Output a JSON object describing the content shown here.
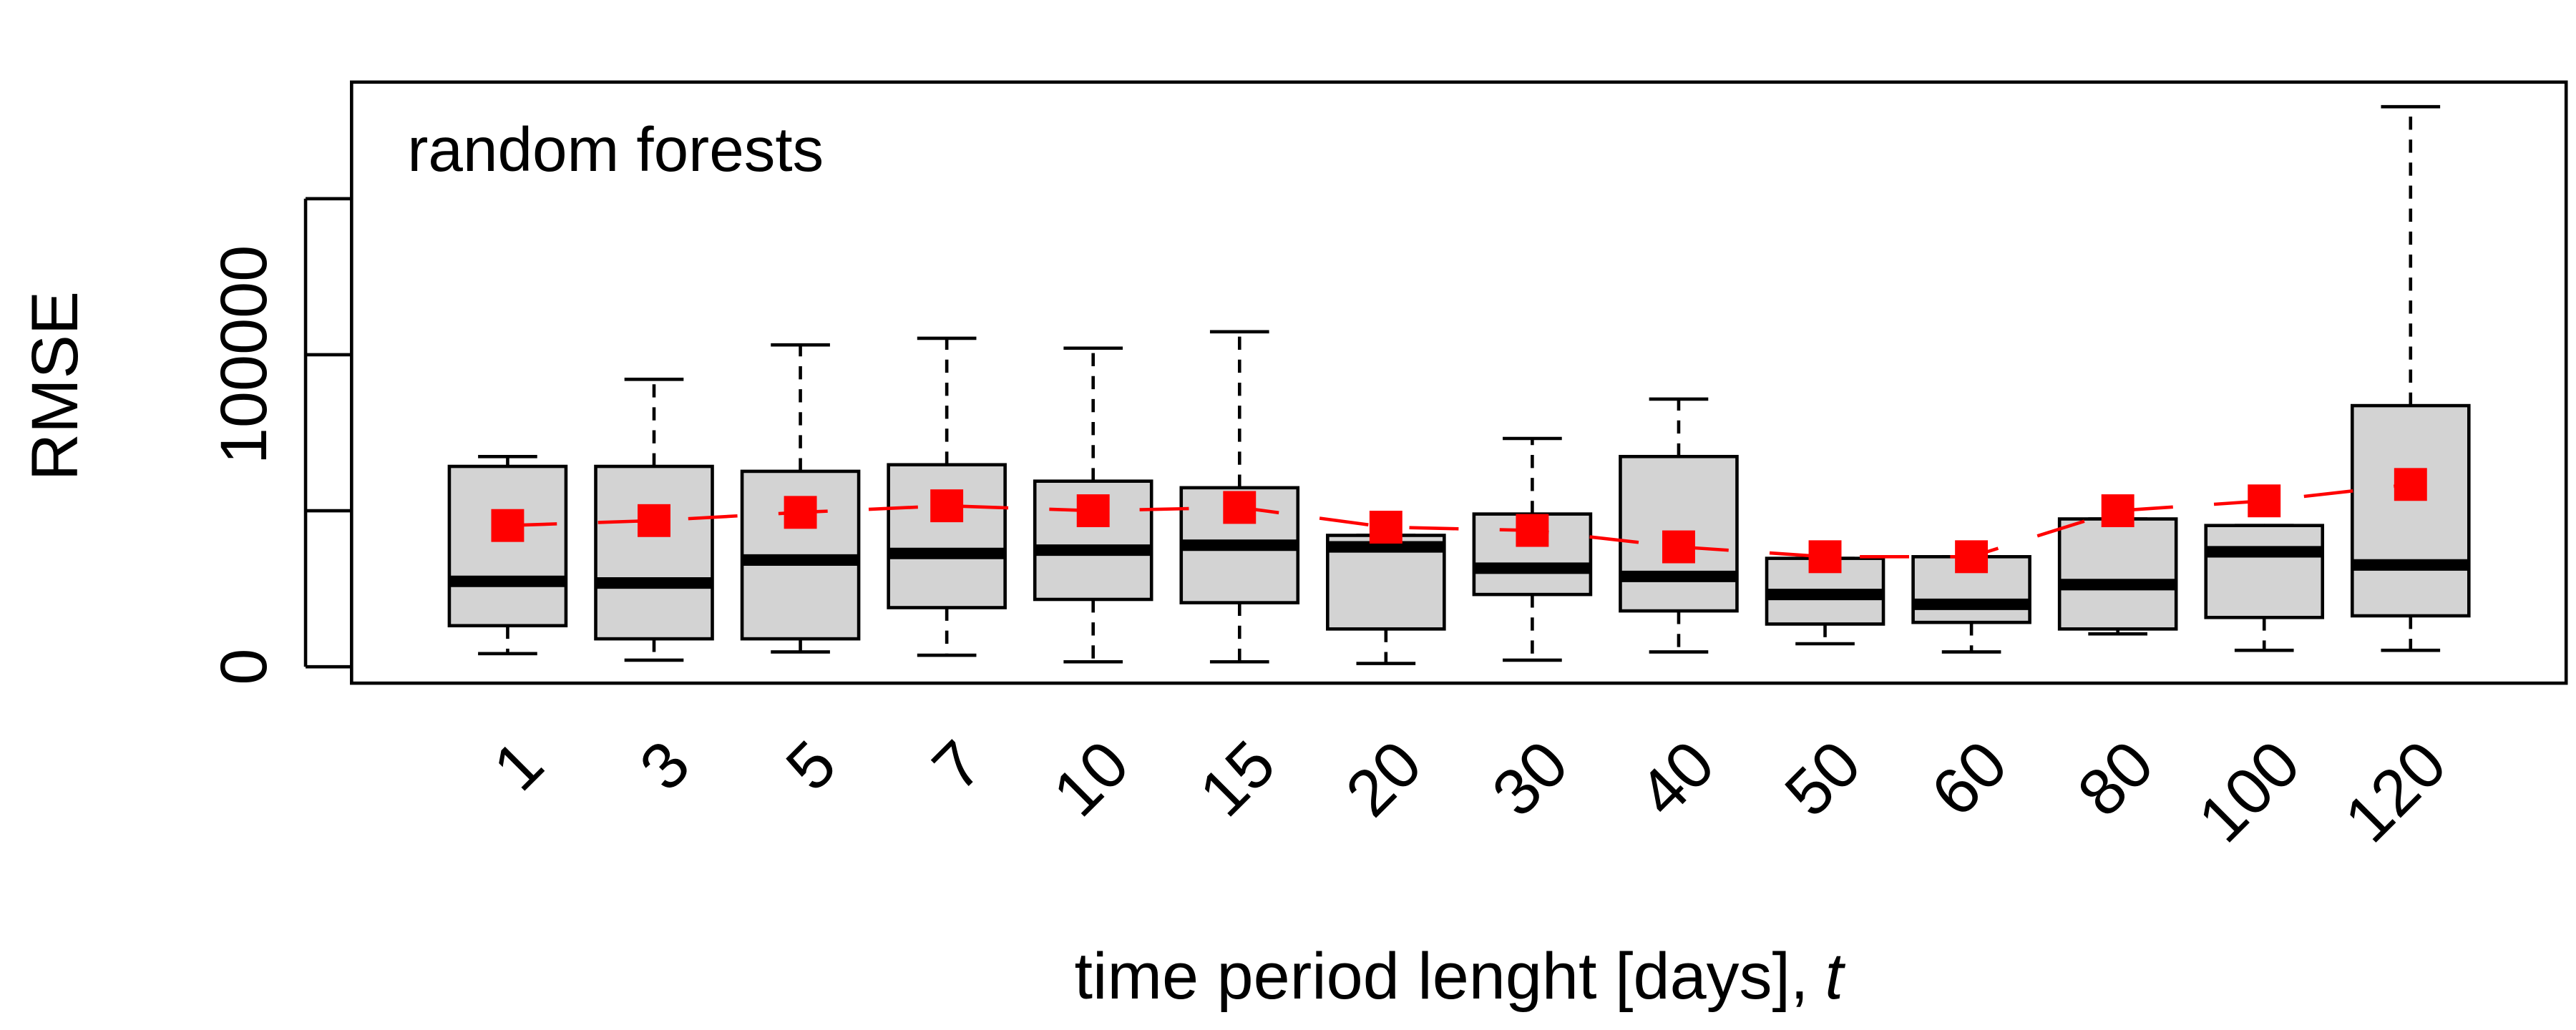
{
  "chart_data": {
    "type": "boxplot",
    "annotation": "random forests",
    "ylabel": "RMSE",
    "xlabel": [
      "time period lenght [days],",
      "t"
    ],
    "categories": [
      "1",
      "3",
      "5",
      "7",
      "10",
      "15",
      "20",
      "30",
      "40",
      "50",
      "60",
      "80",
      "100",
      "120"
    ],
    "box_color": "#d3d3d3",
    "mean_color": "#ff0000",
    "whisker_low": [
      4211,
      2105,
      4737,
      3684,
      1579,
      1579,
      1053,
      2105,
      4737,
      7368,
      4737,
      10526,
      5263,
      5263
    ],
    "q1": [
      13158,
      8947,
      8947,
      18947,
      21579,
      20526,
      12105,
      23158,
      17895,
      13684,
      14211,
      12105,
      15789,
      16316
    ],
    "median": [
      27368,
      26842,
      34211,
      36316,
      37368,
      38947,
      38421,
      31579,
      28947,
      23158,
      20000,
      26316,
      36842,
      32632
    ],
    "q3": [
      64211,
      64211,
      62632,
      64737,
      59474,
      57368,
      42105,
      48947,
      67368,
      34737,
      35263,
      47368,
      45263,
      83684
    ],
    "whisker_high": [
      67368,
      92105,
      103158,
      105263,
      102105,
      107368,
      42105,
      73158,
      85789,
      34737,
      35263,
      47368,
      45263,
      179474
    ],
    "mean": [
      45263,
      46842,
      49474,
      51579,
      50000,
      51053,
      44737,
      43684,
      38421,
      35263,
      35263,
      50000,
      53158,
      58421
    ],
    "ylim": [
      -5263,
      187368
    ],
    "yticks": [
      0,
      {
        "value": 50000
      },
      100000,
      {
        "value": 150000
      }
    ]
  }
}
